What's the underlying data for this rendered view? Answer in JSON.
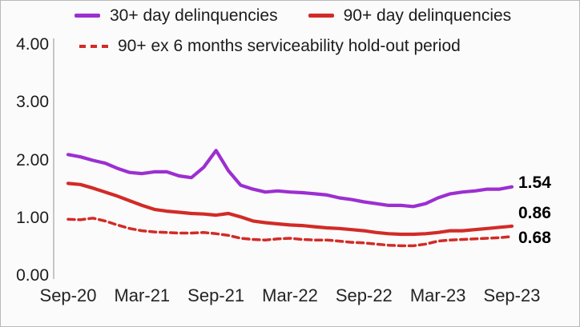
{
  "chart_data": {
    "type": "line",
    "title": "",
    "xlabel": "",
    "ylabel": "",
    "grid": false,
    "legend_position": "top",
    "y_range": [
      0,
      4
    ],
    "y_ticks": [
      {
        "label": "4.00",
        "value": 4
      },
      {
        "label": "3.00",
        "value": 3
      },
      {
        "label": "2.00",
        "value": 2
      },
      {
        "label": "1.00",
        "value": 1
      },
      {
        "label": "0.00",
        "value": 0
      }
    ],
    "x_tick_labels": [
      "Sep-20",
      "Mar-21",
      "Sep-21",
      "Mar-22",
      "Sep-22",
      "Mar-23",
      "Sep-23"
    ],
    "x_note": "monthly points from Sep-20 to Sep-23",
    "series": [
      {
        "name": "30+ day delinquencies",
        "color": "#9c2fd1",
        "style": "solid",
        "end_label": "1.54",
        "values": [
          2.1,
          2.06,
          2.0,
          1.95,
          1.86,
          1.79,
          1.77,
          1.8,
          1.8,
          1.73,
          1.7,
          1.88,
          2.17,
          1.82,
          1.57,
          1.5,
          1.45,
          1.47,
          1.45,
          1.44,
          1.42,
          1.4,
          1.35,
          1.32,
          1.28,
          1.25,
          1.22,
          1.22,
          1.2,
          1.25,
          1.35,
          1.42,
          1.45,
          1.47,
          1.5,
          1.5,
          1.54
        ]
      },
      {
        "name": "90+ day delinquencies",
        "color": "#d22b27",
        "style": "solid",
        "end_label": "0.86",
        "values": [
          1.6,
          1.58,
          1.52,
          1.45,
          1.38,
          1.3,
          1.22,
          1.15,
          1.12,
          1.1,
          1.08,
          1.07,
          1.05,
          1.08,
          1.02,
          0.95,
          0.92,
          0.9,
          0.88,
          0.87,
          0.85,
          0.83,
          0.82,
          0.8,
          0.78,
          0.75,
          0.73,
          0.72,
          0.72,
          0.73,
          0.75,
          0.78,
          0.78,
          0.8,
          0.82,
          0.84,
          0.86
        ]
      },
      {
        "name": "90+ ex 6 months serviceability hold-out period",
        "color": "#d22b27",
        "style": "dashed",
        "end_label": "0.68",
        "values": [
          0.98,
          0.97,
          1.0,
          0.95,
          0.88,
          0.82,
          0.78,
          0.76,
          0.75,
          0.74,
          0.74,
          0.75,
          0.73,
          0.7,
          0.65,
          0.63,
          0.62,
          0.64,
          0.65,
          0.63,
          0.62,
          0.62,
          0.6,
          0.58,
          0.57,
          0.55,
          0.53,
          0.52,
          0.52,
          0.55,
          0.6,
          0.62,
          0.63,
          0.64,
          0.65,
          0.66,
          0.68
        ]
      }
    ]
  }
}
